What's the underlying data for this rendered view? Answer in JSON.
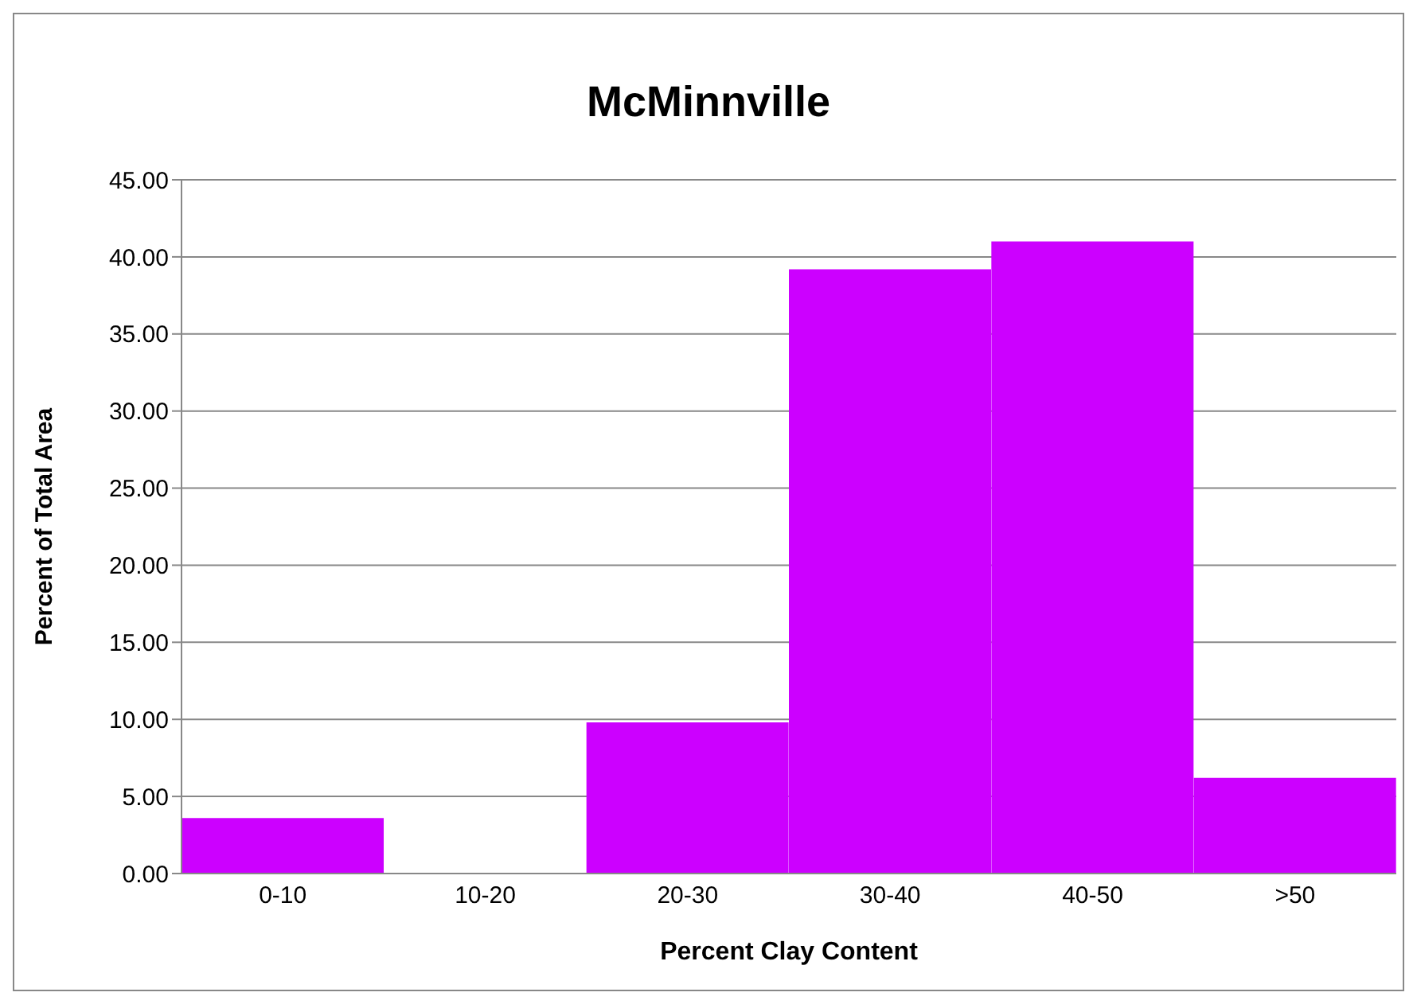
{
  "chart_data": {
    "type": "bar",
    "title": "McMinnville",
    "xlabel": "Percent Clay Content",
    "ylabel": "Percent of Total Area",
    "categories": [
      "0-10",
      "10-20",
      "20-30",
      "30-40",
      "40-50",
      ">50"
    ],
    "values": [
      3.6,
      0,
      9.8,
      39.2,
      41.0,
      6.2
    ],
    "color": "#cc00ff",
    "ylim": [
      0,
      45
    ],
    "yticks": [
      {
        "value": 0,
        "label": "0.00"
      },
      {
        "value": 5,
        "label": "5.00"
      },
      {
        "value": 10,
        "label": "10.00"
      },
      {
        "value": 15,
        "label": "15.00"
      },
      {
        "value": 20,
        "label": "20.00"
      },
      {
        "value": 25,
        "label": "25.00"
      },
      {
        "value": 30,
        "label": "30.00"
      },
      {
        "value": 35,
        "label": "35.00"
      },
      {
        "value": 40,
        "label": "40.00"
      },
      {
        "value": 45,
        "label": "45.00"
      }
    ],
    "grid": "y"
  }
}
